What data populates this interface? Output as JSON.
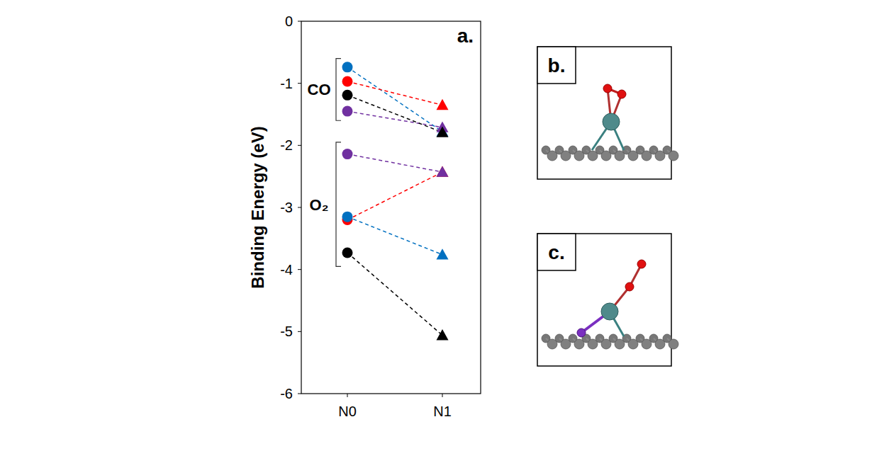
{
  "chart_data": {
    "type": "line",
    "panel_label": "a.",
    "y_label": "Binding Energy (eV)",
    "categories": [
      "N0",
      "N1"
    ],
    "ylim": [
      -6,
      0
    ],
    "yticks": [
      0,
      -1,
      -2,
      -3,
      -4,
      -5,
      -6
    ],
    "line_style": "dashed",
    "annotations": [
      {
        "text": "CO",
        "y_range": [
          -0.6,
          -1.6
        ]
      },
      {
        "text": "O₂",
        "y_range": [
          -1.95,
          -3.95
        ]
      }
    ],
    "series": [
      {
        "color": "#0070c0",
        "values": [
          -0.74,
          -1.78
        ]
      },
      {
        "color": "#ff0000",
        "values": [
          -0.97,
          -1.35
        ]
      },
      {
        "color": "#7030a0",
        "values": [
          -1.45,
          -1.71
        ]
      },
      {
        "color": "#000000",
        "values": [
          -1.19,
          -1.79
        ]
      },
      {
        "color": "#ff0000",
        "values": [
          -3.2,
          -2.43
        ]
      },
      {
        "color": "#7030a0",
        "values": [
          -2.14,
          -2.43
        ]
      },
      {
        "color": "#0070c0",
        "values": [
          -3.15,
          -3.76
        ]
      },
      {
        "color": "#000000",
        "values": [
          -3.73,
          -5.06
        ]
      }
    ]
  },
  "structures": [
    {
      "label": "b."
    },
    {
      "label": "c."
    }
  ]
}
